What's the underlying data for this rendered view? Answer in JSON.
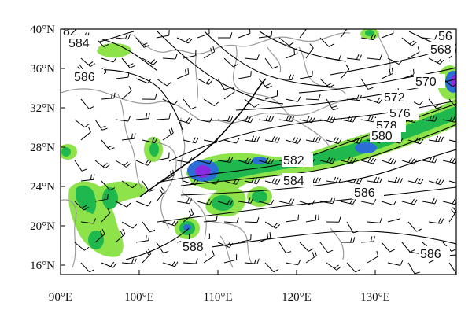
{
  "map": {
    "lat_labels": [
      "40°N",
      "36°N",
      "32°N",
      "28°N",
      "24°N",
      "20°N",
      "16°N"
    ],
    "lon_labels": [
      "90°E",
      "100°E",
      "110°E",
      "120°E",
      "130°E"
    ],
    "contour_labels": [
      "584",
      "586",
      "570",
      "572",
      "576",
      "578",
      "580",
      "582",
      "584",
      "586",
      "588",
      "586",
      "568",
      "56",
      "82"
    ],
    "colors": {
      "precip_light": "#8ee34a",
      "precip_mid": "#1fb84e",
      "precip_high": "#2b6fd6",
      "precip_max": "#8a2be2",
      "boundary": "#9a9a9a",
      "contour": "#000000"
    }
  }
}
